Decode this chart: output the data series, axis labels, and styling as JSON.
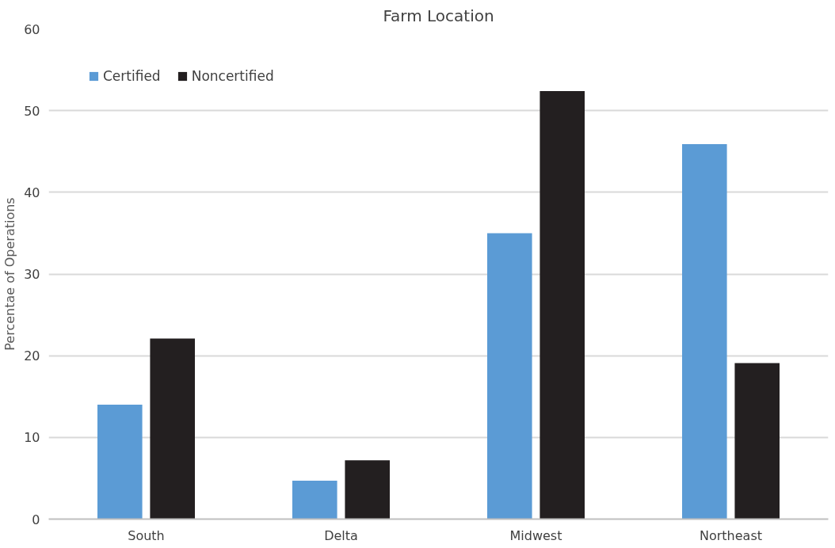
{
  "chart_data": {
    "type": "bar",
    "title": "Farm Location",
    "ylabel": "Percentae of Operations",
    "categories": [
      "South",
      "Delta",
      "Midwest",
      "Northeast"
    ],
    "series": [
      {
        "name": "Certified",
        "color": "#5b9bd5",
        "values": [
          14,
          4.7,
          35,
          45.9
        ]
      },
      {
        "name": "Noncertified",
        "color": "#231f20",
        "values": [
          22.1,
          7.2,
          52.4,
          19.1
        ]
      }
    ],
    "ylim": [
      0,
      60
    ],
    "yticks": [
      0,
      10,
      20,
      30,
      40,
      50,
      60
    ],
    "grid": "y",
    "legend": "top left"
  }
}
